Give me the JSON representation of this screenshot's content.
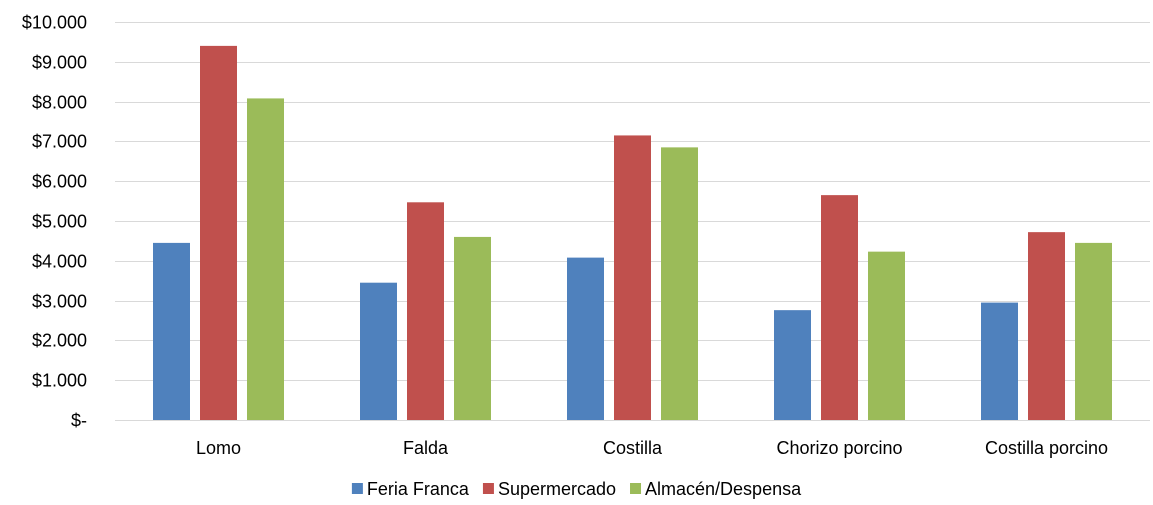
{
  "chart_data": {
    "type": "bar",
    "categories": [
      "Lomo",
      "Falda",
      "Costilla",
      "Chorizo porcino",
      "Costilla porcino"
    ],
    "series": [
      {
        "name": "Feria Franca",
        "color": "#4f81bd",
        "values": [
          4450,
          3450,
          4080,
          2760,
          2950
        ]
      },
      {
        "name": "Supermercado",
        "color": "#c0504d",
        "values": [
          9400,
          5470,
          7150,
          5650,
          4720
        ]
      },
      {
        "name": "Almacén/Despensa",
        "color": "#9bbb59",
        "values": [
          8080,
          4600,
          6850,
          4230,
          4450
        ]
      }
    ],
    "ylim": [
      0,
      10000
    ],
    "yticks": [
      0,
      1000,
      2000,
      3000,
      4000,
      5000,
      6000,
      7000,
      8000,
      9000,
      10000
    ],
    "ytick_labels": [
      "$-",
      "$1.000",
      "$2.000",
      "$3.000",
      "$4.000",
      "$5.000",
      "$6.000",
      "$7.000",
      "$8.000",
      "$9.000",
      "$10.000"
    ],
    "grid": true,
    "legend_position": "bottom"
  }
}
